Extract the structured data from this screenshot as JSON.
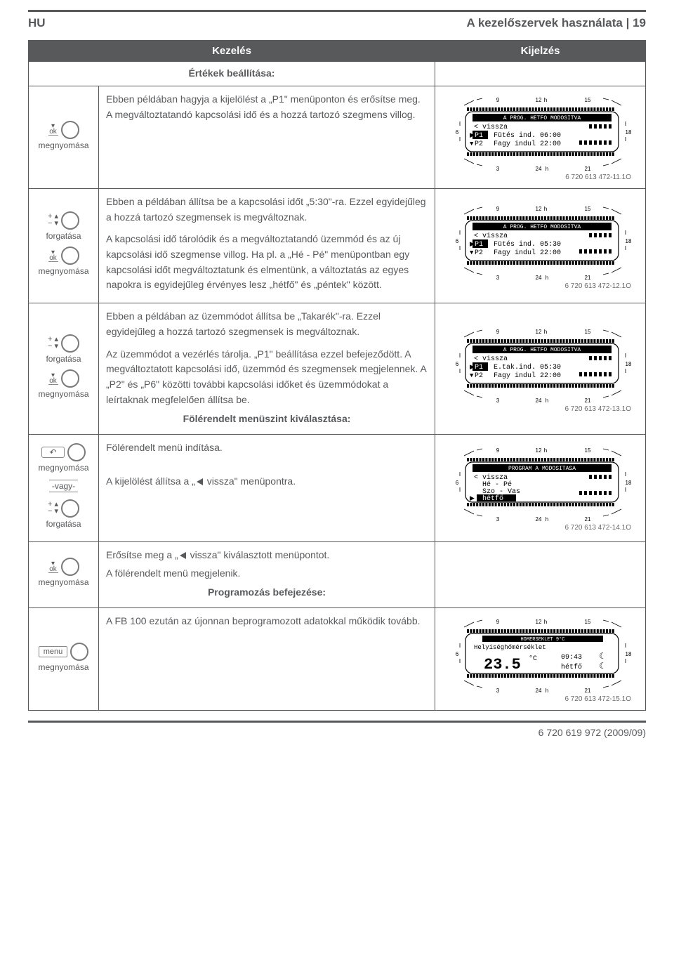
{
  "header": {
    "lang": "HU",
    "title": "A kezelőszervek használata",
    "page": "19"
  },
  "table_headers": {
    "left": "Kezelés",
    "right": "Kijelzés"
  },
  "subhead1": "Értékek beállítása:",
  "subhead2": "Fölérendelt menüszint kiválasztása:",
  "subhead3": "Programozás befejezése:",
  "ctrl_labels": {
    "ok": "ok",
    "press": "megnyomása",
    "rotate": "forgatása",
    "or": "-vagy-",
    "menu": "menu"
  },
  "rows": {
    "r1": {
      "text": "Ebben példában hagyja a kijelölést a „P1\" menüponton és erősítse meg.\nA megváltoztatandó kapcsolási idő és a hozzá tartozó szegmens villog.",
      "ref": "6 720 613 472-11.1O",
      "lcd": {
        "title": "A PROG. HETFO MODOSITVA",
        "l1": "< vissza",
        "l2a": "P1",
        "l2b": "Fütés ind.  06:00",
        "l3a": "P2",
        "l3b": "Fagy indul  22:00",
        "highlight_l2a": true
      }
    },
    "r2": {
      "text1": "Ebben a példában állítsa be a kapcsolási időt „5:30\"-ra. Ezzel egyidejűleg a hozzá tartozó szegmensek is megváltoznak.",
      "text2": "A kapcsolási idő tárolódik és a megváltoztatandó üzemmód és az új kapcsolási idő szegmense villog. Ha pl. a „Hé - Pé\" menüpontban egy kapcsolási időt megváltoztatunk és elmentünk, a változtatás az egyes napokra is egyidejűleg érvényes lesz „hétfő\" és „péntek\" között.",
      "ref": "6 720 613 472-12.1O",
      "lcd": {
        "title": "A PROG. HETFO MODOSITVA",
        "l1": "< vissza",
        "l2a": "P1",
        "l2b": "Fütés ind.  05:30",
        "l3a": "P2",
        "l3b": "Fagy indul  22:00",
        "highlight_l2a": true
      }
    },
    "r3": {
      "text1": "Ebben a példában az üzemmódot állítsa be „Takarék\"-ra. Ezzel egyidejűleg a hozzá tartozó szegmensek is megváltoznak.",
      "text2": "Az üzemmódot a vezérlés tárolja. „P1\" beállítása ezzel befejeződött. A megváltoztatott kapcsolási idő, üzemmód és szegmensek megjelennek. A „P2\" és „P6\" közötti további kapcsolási időket és üzemmódokat a leírtaknak megfelelően állítsa be.",
      "ref": "6 720 613 472-13.1O",
      "lcd": {
        "title": "A PROG. HETFO MODOSITVA",
        "l1": "< vissza",
        "l2a": "P1",
        "l2b": "E.tak.ind.  05:30",
        "l3a": "P2",
        "l3b": "Fagy indul  22:00",
        "highlight_l2a": true
      }
    },
    "r4": {
      "text1": "Fölérendelt menü indítása.",
      "text2_pre": "A kijelölést állítsa a „",
      "text2_post": " vissza\" menüpontra.",
      "ref": "6 720 613 472-14.1O",
      "lcd": {
        "title": "PROGRAM A MODOSITASA",
        "l1": "< vissza",
        "l2": "Hé - Pé",
        "l3": "Szo - Vas",
        "l4": "hétfő",
        "highlight_last": true
      }
    },
    "r5": {
      "text_pre": "Erősítse meg a „",
      "text_mid": " vissza\" kiválasztott menüpontot.",
      "text2": "A fölérendelt menü megjelenik."
    },
    "r6": {
      "text": "A FB 100 ezután az újonnan beprogramozott adatokkal működik tovább.",
      "ref": "6 720 613 472-15.1O",
      "lcd": {
        "title": "HOMERSEKLET 9°C",
        "l1": "Helyiséghőmérséklet",
        "temp": "23.5",
        "unit": "°C",
        "time": "09:43",
        "day": "hétfő",
        "moon": "☾"
      }
    }
  },
  "footer": "6 720 619 972 (2009/09)",
  "lcd_scale": {
    "top": [
      "9",
      "12",
      "h",
      "15"
    ],
    "bottom": [
      "3",
      "24",
      "h",
      "21"
    ],
    "left": "6",
    "right": "18"
  }
}
